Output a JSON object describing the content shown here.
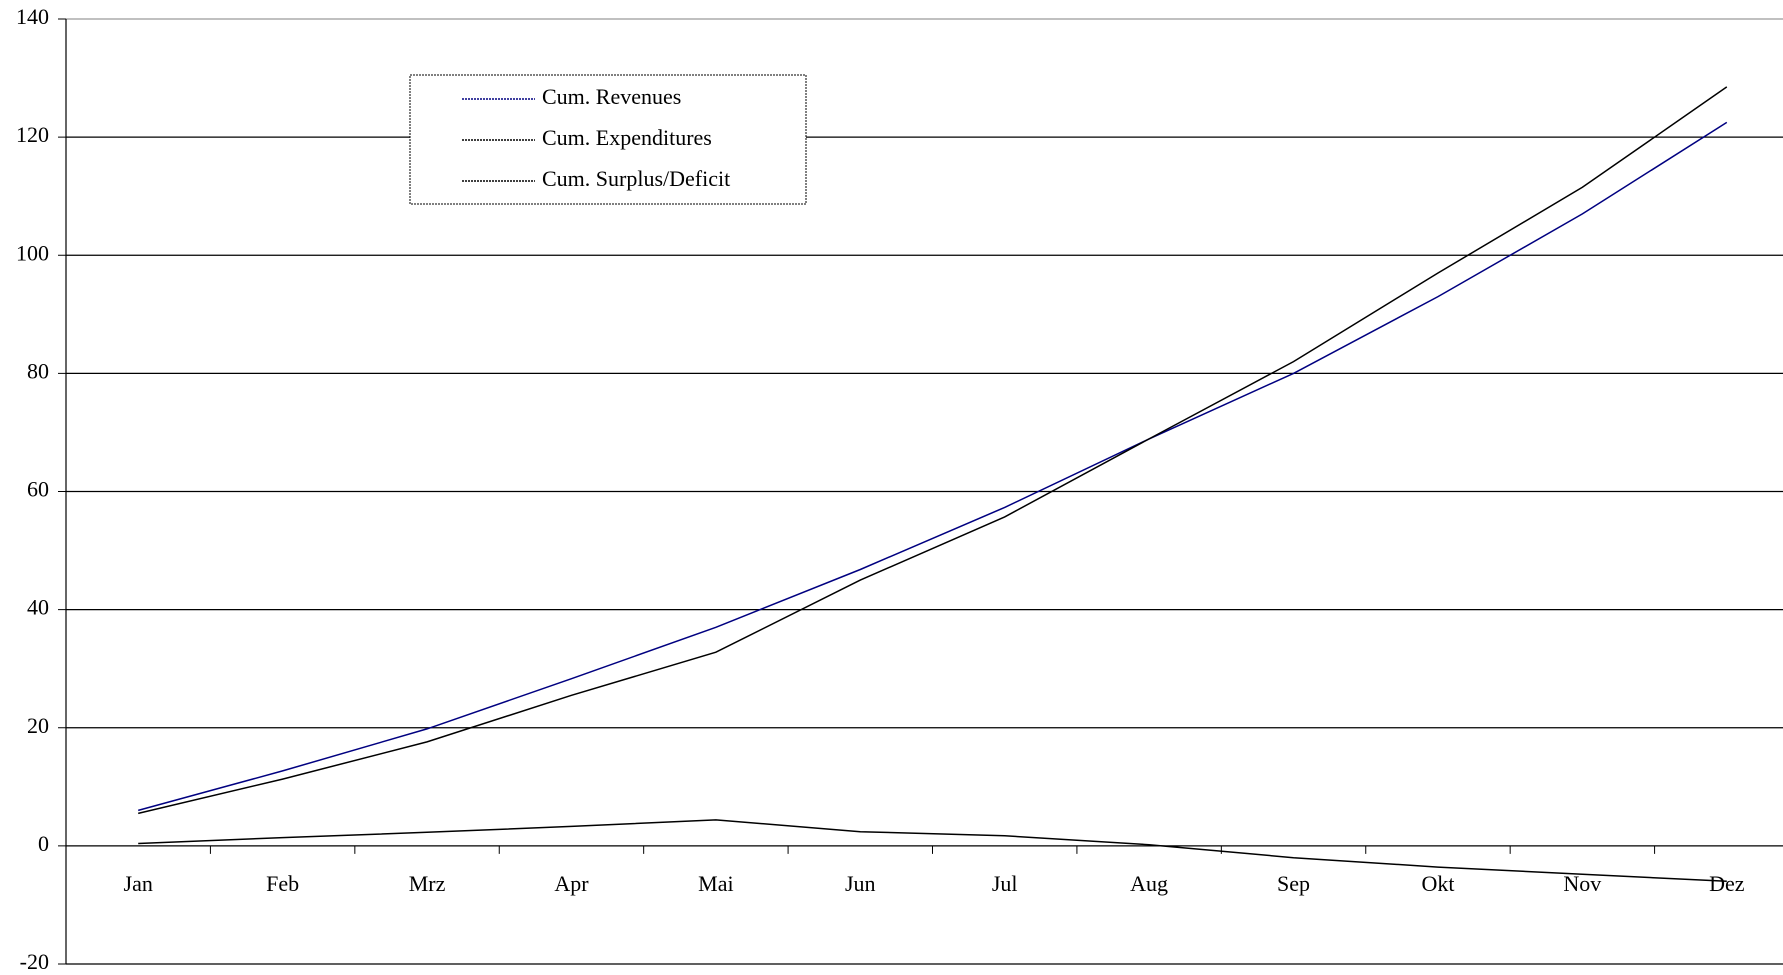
{
  "chart_data": {
    "type": "line",
    "categories": [
      "Jan",
      "Feb",
      "Mrz",
      "Apr",
      "Mai",
      "Jun",
      "Jul",
      "Aug",
      "Sep",
      "Okt",
      "Nov",
      "Dez"
    ],
    "series": [
      {
        "name": "Cum. Revenues",
        "color": "#000080",
        "values": [
          6,
          12.7,
          19.8,
          28.3,
          37,
          46.8,
          57.3,
          68.9,
          80,
          93,
          107,
          122.5
        ]
      },
      {
        "name": "Cum. Expenditures",
        "color": "#000000",
        "values": [
          5.5,
          11.3,
          17.6,
          25.5,
          32.8,
          45,
          55.7,
          68.9,
          82,
          97,
          111.5,
          128.5
        ]
      },
      {
        "name": "Cum. Surplus/Deficit",
        "color": "#000000",
        "values": [
          0.4,
          1.4,
          2.3,
          3.3,
          4.4,
          2.4,
          1.7,
          0.2,
          -2,
          -3.6,
          -4.8,
          -6
        ]
      }
    ],
    "ylim": [
      -20,
      140
    ],
    "yticks": [
      -20,
      0,
      20,
      40,
      60,
      80,
      100,
      120,
      140
    ],
    "grid": true,
    "legend": "upper left"
  }
}
